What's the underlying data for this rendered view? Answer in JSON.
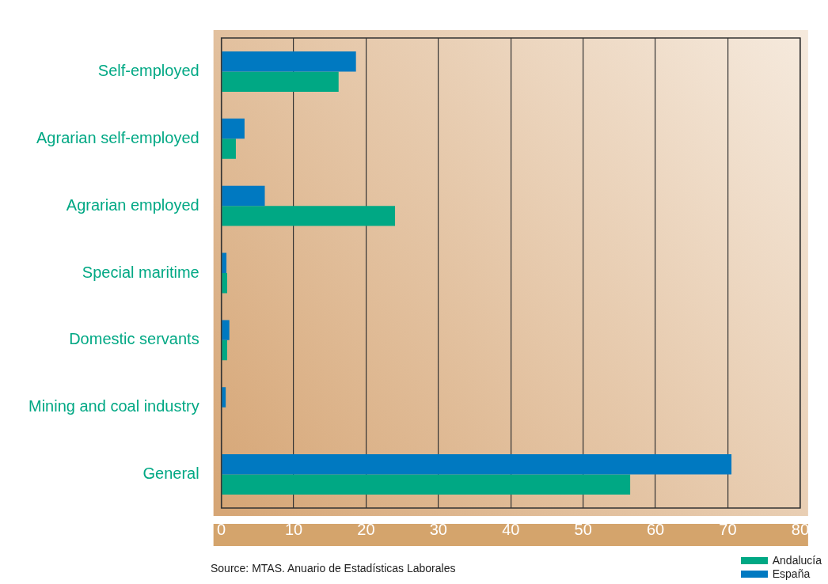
{
  "chart_data": {
    "type": "bar",
    "orientation": "horizontal",
    "categories": [
      "Self-employed",
      "Agrarian self-employed",
      "Agrarian employed",
      "Special maritime",
      "Domestic servants",
      "Mining and coal industry",
      "General"
    ],
    "series": [
      {
        "name": "España",
        "color": "#0079c1",
        "values": [
          18.6,
          3.2,
          6.0,
          0.7,
          1.1,
          0.6,
          70.5
        ]
      },
      {
        "name": "Andalucía",
        "color": "#00a884",
        "values": [
          16.2,
          2.0,
          24.0,
          0.8,
          0.8,
          null,
          56.5
        ]
      }
    ],
    "xlim": [
      0,
      80
    ],
    "xticks": [
      0,
      10,
      20,
      30,
      40,
      50,
      60,
      70,
      80
    ],
    "grid": "x",
    "legend": "bottom right",
    "annotations": [
      "Source: MTAS. Anuario de Estadísticas Laborales"
    ]
  }
}
